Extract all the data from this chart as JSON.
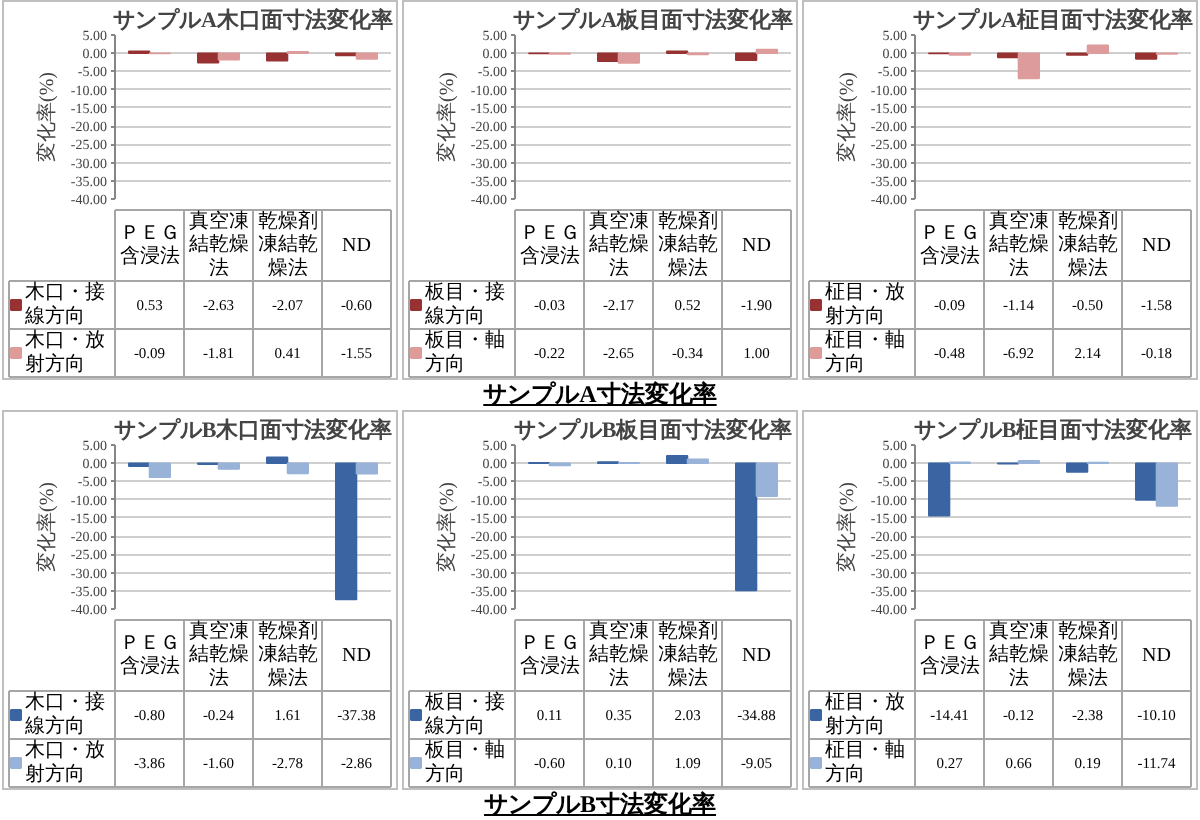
{
  "chart_data": [
    {
      "type": "bar",
      "title": "サンプルA木口面寸法変化率",
      "ylabel": "変化率(%)",
      "categories": [
        "ＰＥＧ含浸法",
        "真空凍結乾燥法",
        "乾燥剤凍結乾燥法",
        "ND"
      ],
      "series": [
        {
          "name": "木口・接線方向",
          "color": "#983232",
          "values": [
            0.53,
            -2.63,
            -2.07,
            -0.6
          ],
          "value_labels": [
            "0.53",
            "-2.63",
            "-2.07",
            "-0.60"
          ]
        },
        {
          "name": "木口・放射方向",
          "color": "#dd9c9b",
          "values": [
            -0.09,
            -1.81,
            0.41,
            -1.55
          ],
          "value_labels": [
            "-0.09",
            "-1.81",
            "0.41",
            "-1.55"
          ]
        }
      ],
      "ylim": [
        -40,
        5
      ],
      "yticks": [
        {
          "value": 5,
          "label": "5.00"
        },
        {
          "value": 0,
          "label": "0.00"
        },
        {
          "value": -5,
          "label": "-5.00"
        },
        {
          "value": -10,
          "label": "-10.00"
        },
        {
          "value": -15,
          "label": "-15.00"
        },
        {
          "value": -20,
          "label": "-20.00"
        },
        {
          "value": -25,
          "label": "-25.00"
        },
        {
          "value": -30,
          "label": "-30.00"
        },
        {
          "value": -35,
          "label": "-35.00"
        },
        {
          "value": -40,
          "label": "-40.00"
        }
      ],
      "grid": "y",
      "legend": "bottom"
    },
    {
      "type": "bar",
      "title": "サンプルA板目面寸法変化率",
      "ylabel": "変化率(%)",
      "categories": [
        "ＰＥＧ含浸法",
        "真空凍結乾燥法",
        "乾燥剤凍結乾燥法",
        "ND"
      ],
      "series": [
        {
          "name": "板目・接線方向",
          "color": "#983232",
          "values": [
            -0.03,
            -2.17,
            0.52,
            -1.9
          ],
          "value_labels": [
            "-0.03",
            "-2.17",
            "0.52",
            "-1.90"
          ]
        },
        {
          "name": "板目・軸方向",
          "color": "#dd9c9b",
          "values": [
            -0.22,
            -2.65,
            -0.34,
            1.0
          ],
          "value_labels": [
            "-0.22",
            "-2.65",
            "-0.34",
            "1.00"
          ]
        }
      ],
      "ylim": [
        -40,
        5
      ],
      "yticks": [
        {
          "value": 5,
          "label": "5.00"
        },
        {
          "value": 0,
          "label": "0.00"
        },
        {
          "value": -5,
          "label": "-5.00"
        },
        {
          "value": -10,
          "label": "-10.00"
        },
        {
          "value": -15,
          "label": "-15.00"
        },
        {
          "value": -20,
          "label": "-20.00"
        },
        {
          "value": -25,
          "label": "-25.00"
        },
        {
          "value": -30,
          "label": "-30.00"
        },
        {
          "value": -35,
          "label": "-35.00"
        },
        {
          "value": -40,
          "label": "-40.00"
        }
      ],
      "grid": "y",
      "legend": "bottom",
      "annotations": [
        "サンプルA寸法変化率"
      ]
    },
    {
      "type": "bar",
      "title": "サンプルA柾目面寸法変化率",
      "ylabel": "変化率(%)",
      "categories": [
        "ＰＥＧ含浸法",
        "真空凍結乾燥法",
        "乾燥剤凍結乾燥法",
        "ND"
      ],
      "series": [
        {
          "name": "柾目・放射方向",
          "color": "#983232",
          "values": [
            -0.09,
            -1.14,
            -0.5,
            -1.58
          ],
          "value_labels": [
            "-0.09",
            "-1.14",
            "-0.50",
            "-1.58"
          ]
        },
        {
          "name": "柾目・軸方向",
          "color": "#dd9c9b",
          "values": [
            -0.48,
            -6.92,
            2.14,
            -0.18
          ],
          "value_labels": [
            "-0.48",
            "-6.92",
            "2.14",
            "-0.18"
          ]
        }
      ],
      "ylim": [
        -40,
        5
      ],
      "yticks": [
        {
          "value": 5,
          "label": "5.00"
        },
        {
          "value": 0,
          "label": "0.00"
        },
        {
          "value": -5,
          "label": "-5.00"
        },
        {
          "value": -10,
          "label": "-10.00"
        },
        {
          "value": -15,
          "label": "-15.00"
        },
        {
          "value": -20,
          "label": "-20.00"
        },
        {
          "value": -25,
          "label": "-25.00"
        },
        {
          "value": -30,
          "label": "-30.00"
        },
        {
          "value": -35,
          "label": "-35.00"
        },
        {
          "value": -40,
          "label": "-40.00"
        }
      ],
      "grid": "y",
      "legend": "bottom"
    },
    {
      "type": "bar",
      "title": "サンプルB木口面寸法変化率",
      "ylabel": "変化率(%)",
      "categories": [
        "ＰＥＧ含浸法",
        "真空凍結乾燥法",
        "乾燥剤凍結乾燥法",
        "ND"
      ],
      "series": [
        {
          "name": "木口・接線方向",
          "color": "#3a64a2",
          "values": [
            -0.8,
            -0.24,
            1.61,
            -37.38
          ],
          "value_labels": [
            "-0.80",
            "-0.24",
            "1.61",
            "-37.38"
          ]
        },
        {
          "name": "木口・放射方向",
          "color": "#98b2d8",
          "values": [
            -3.86,
            -1.6,
            -2.78,
            -2.86
          ],
          "value_labels": [
            "-3.86",
            "-1.60",
            "-2.78",
            "-2.86"
          ]
        }
      ],
      "ylim": [
        -40,
        5
      ],
      "yticks": [
        {
          "value": 5,
          "label": "5.00"
        },
        {
          "value": 0,
          "label": "0.00"
        },
        {
          "value": -5,
          "label": "-5.00"
        },
        {
          "value": -10,
          "label": "-10.00"
        },
        {
          "value": -15,
          "label": "-15.00"
        },
        {
          "value": -20,
          "label": "-20.00"
        },
        {
          "value": -25,
          "label": "-25.00"
        },
        {
          "value": -30,
          "label": "-30.00"
        },
        {
          "value": -35,
          "label": "-35.00"
        },
        {
          "value": -40,
          "label": "-40.00"
        }
      ],
      "grid": "y",
      "legend": "bottom"
    },
    {
      "type": "bar",
      "title": "サンプルB板目面寸法変化率",
      "ylabel": "変化率(%)",
      "categories": [
        "ＰＥＧ含浸法",
        "真空凍結乾燥法",
        "乾燥剤凍結乾燥法",
        "ND"
      ],
      "series": [
        {
          "name": "板目・接線方向",
          "color": "#3a64a2",
          "values": [
            0.11,
            0.35,
            2.03,
            -34.88
          ],
          "value_labels": [
            "0.11",
            "0.35",
            "2.03",
            "-34.88"
          ]
        },
        {
          "name": "板目・軸方向",
          "color": "#98b2d8",
          "values": [
            -0.6,
            0.1,
            1.09,
            -9.05
          ],
          "value_labels": [
            "-0.60",
            "0.10",
            "1.09",
            "-9.05"
          ]
        }
      ],
      "ylim": [
        -40,
        5
      ],
      "yticks": [
        {
          "value": 5,
          "label": "5.00"
        },
        {
          "value": 0,
          "label": "0.00"
        },
        {
          "value": -5,
          "label": "-5.00"
        },
        {
          "value": -10,
          "label": "-10.00"
        },
        {
          "value": -15,
          "label": "-15.00"
        },
        {
          "value": -20,
          "label": "-20.00"
        },
        {
          "value": -25,
          "label": "-25.00"
        },
        {
          "value": -30,
          "label": "-30.00"
        },
        {
          "value": -35,
          "label": "-35.00"
        },
        {
          "value": -40,
          "label": "-40.00"
        }
      ],
      "grid": "y",
      "legend": "bottom",
      "annotations": [
        "サンプルB寸法変化率"
      ]
    },
    {
      "type": "bar",
      "title": "サンプルB柾目面寸法変化率",
      "ylabel": "変化率(%)",
      "categories": [
        "ＰＥＧ含浸法",
        "真空凍結乾燥法",
        "乾燥剤凍結乾燥法",
        "ND"
      ],
      "series": [
        {
          "name": "柾目・放射方向",
          "color": "#3a64a2",
          "values": [
            -14.41,
            -0.12,
            -2.38,
            -10.1
          ],
          "value_labels": [
            "-14.41",
            "-0.12",
            "-2.38",
            "-10.10"
          ]
        },
        {
          "name": "柾目・軸方向",
          "color": "#98b2d8",
          "values": [
            0.27,
            0.66,
            0.19,
            -11.74
          ],
          "value_labels": [
            "0.27",
            "0.66",
            "0.19",
            "-11.74"
          ]
        }
      ],
      "ylim": [
        -40,
        5
      ],
      "yticks": [
        {
          "value": 5,
          "label": "5.00"
        },
        {
          "value": 0,
          "label": "0.00"
        },
        {
          "value": -5,
          "label": "-5.00"
        },
        {
          "value": -10,
          "label": "-10.00"
        },
        {
          "value": -15,
          "label": "-15.00"
        },
        {
          "value": -20,
          "label": "-20.00"
        },
        {
          "value": -25,
          "label": "-25.00"
        },
        {
          "value": -30,
          "label": "-30.00"
        },
        {
          "value": -35,
          "label": "-35.00"
        },
        {
          "value": -40,
          "label": "-40.00"
        }
      ],
      "grid": "y",
      "legend": "bottom"
    }
  ]
}
